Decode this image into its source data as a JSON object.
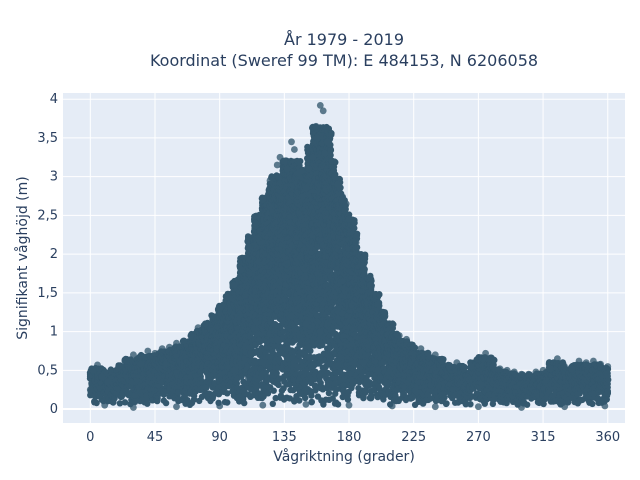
{
  "chart_data": {
    "type": "scatter",
    "title_lines": [
      "År 1979 - 2019",
      "Koordinat (Sweref 99 TM): E 484153, N 6206058"
    ],
    "xlabel": "Vågriktning (grader)",
    "ylabel": "Signifikant våghöjd (m)",
    "xlim": [
      -19,
      372
    ],
    "ylim": [
      -0.18,
      4.08
    ],
    "x_ticks": [
      0,
      45,
      90,
      135,
      180,
      225,
      270,
      315,
      360
    ],
    "x_tick_labels": [
      "0",
      "45",
      "90",
      "135",
      "180",
      "225",
      "270",
      "315",
      "360"
    ],
    "y_ticks": [
      0,
      0.5,
      1,
      1.5,
      2,
      2.5,
      3,
      3.5,
      4
    ],
    "y_tick_labels": [
      "0",
      "0,5",
      "1",
      "1,5",
      "2",
      "2,5",
      "3",
      "3,5",
      "4"
    ],
    "grid": true,
    "marker_color": "#34586e",
    "plot_bgcolor": "#e5ecf6",
    "series": [
      {
        "points": [
          [
            0,
            0.25
          ],
          [
            2,
            0.5
          ],
          [
            5,
            0.57
          ],
          [
            8,
            0.42
          ],
          [
            12,
            0.35
          ],
          [
            20,
            0.55
          ],
          [
            25,
            0.62
          ],
          [
            30,
            0.7
          ],
          [
            35,
            0.58
          ],
          [
            40,
            0.75
          ],
          [
            45,
            0.72
          ],
          [
            50,
            0.78
          ],
          [
            55,
            0.8
          ],
          [
            60,
            0.85
          ],
          [
            65,
            0.88
          ],
          [
            70,
            0.95
          ],
          [
            75,
            1.05
          ],
          [
            80,
            1.1
          ],
          [
            85,
            1.2
          ],
          [
            90,
            1.3
          ],
          [
            95,
            1.45
          ],
          [
            100,
            1.6
          ],
          [
            105,
            1.8
          ],
          [
            110,
            2.1
          ],
          [
            115,
            2.4
          ],
          [
            120,
            2.7
          ],
          [
            125,
            2.95
          ],
          [
            130,
            3.15
          ],
          [
            132,
            3.25
          ],
          [
            135,
            3.2
          ],
          [
            137,
            3.1
          ],
          [
            140,
            3.45
          ],
          [
            142,
            3.35
          ],
          [
            145,
            3.05
          ],
          [
            150,
            2.85
          ],
          [
            152,
            3.1
          ],
          [
            155,
            3.25
          ],
          [
            157,
            3.65
          ],
          [
            158,
            3.5
          ],
          [
            160,
            3.92
          ],
          [
            162,
            3.85
          ],
          [
            163,
            3.3
          ],
          [
            165,
            3.45
          ],
          [
            168,
            3.2
          ],
          [
            170,
            3.0
          ],
          [
            172,
            2.9
          ],
          [
            175,
            2.7
          ],
          [
            178,
            2.65
          ],
          [
            180,
            2.45
          ],
          [
            185,
            2.15
          ],
          [
            190,
            1.85
          ],
          [
            195,
            1.6
          ],
          [
            200,
            1.35
          ],
          [
            205,
            1.2
          ],
          [
            210,
            1.05
          ],
          [
            215,
            0.95
          ],
          [
            220,
            0.9
          ],
          [
            225,
            0.8
          ],
          [
            230,
            0.78
          ],
          [
            235,
            0.72
          ],
          [
            240,
            0.7
          ],
          [
            245,
            0.62
          ],
          [
            250,
            0.55
          ],
          [
            255,
            0.6
          ],
          [
            260,
            0.52
          ],
          [
            265,
            0.55
          ],
          [
            270,
            0.65
          ],
          [
            275,
            0.72
          ],
          [
            280,
            0.55
          ],
          [
            285,
            0.52
          ],
          [
            290,
            0.5
          ],
          [
            295,
            0.48
          ],
          [
            300,
            0.45
          ],
          [
            305,
            0.45
          ],
          [
            310,
            0.48
          ],
          [
            315,
            0.5
          ],
          [
            320,
            0.52
          ],
          [
            325,
            0.65
          ],
          [
            330,
            0.55
          ],
          [
            335,
            0.52
          ],
          [
            340,
            0.62
          ],
          [
            345,
            0.6
          ],
          [
            350,
            0.62
          ],
          [
            355,
            0.58
          ],
          [
            360,
            0.55
          ],
          [
            10,
            0.05
          ],
          [
            30,
            0.02
          ],
          [
            60,
            0.03
          ],
          [
            90,
            0.04
          ],
          [
            120,
            0.05
          ],
          [
            150,
            0.06
          ],
          [
            180,
            0.05
          ],
          [
            210,
            0.04
          ],
          [
            240,
            0.03
          ],
          [
            270,
            0.03
          ],
          [
            300,
            0.02
          ],
          [
            330,
            0.03
          ],
          [
            358,
            0.04
          ],
          [
            120,
            0.6
          ],
          [
            130,
            0.9
          ],
          [
            140,
            1.2
          ],
          [
            150,
            1.1
          ],
          [
            160,
            1.0
          ],
          [
            170,
            0.8
          ],
          [
            100,
            0.5
          ],
          [
            110,
            0.4
          ],
          [
            190,
            0.6
          ],
          [
            200,
            0.5
          ]
        ]
      }
    ]
  }
}
